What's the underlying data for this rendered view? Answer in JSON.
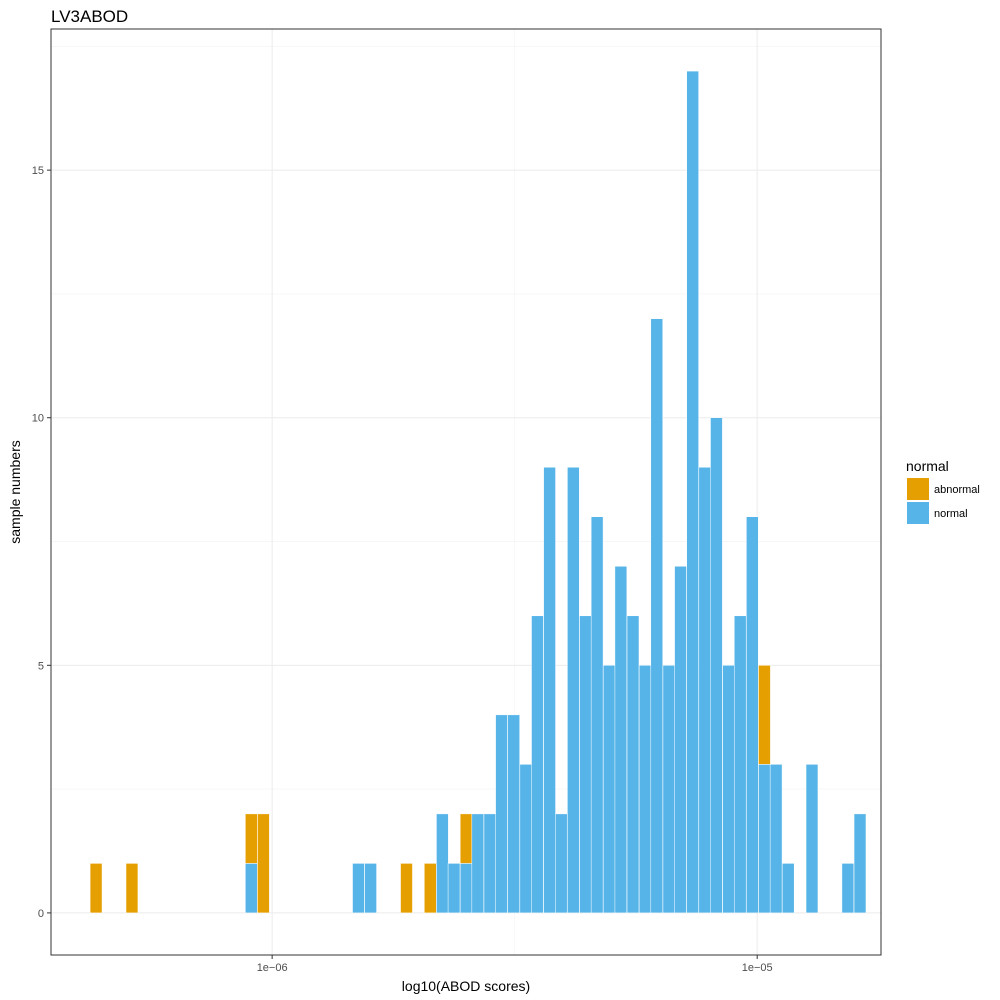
{
  "chart_data": {
    "type": "bar",
    "title": "LV3ABOD",
    "xlabel": "log10(ABOD scores)",
    "ylabel": "sample numbers",
    "x_scale": "log10",
    "x_domain": [
      3.5e-07,
      1.8e-05
    ],
    "y_range": [
      -0.85,
      17.85
    ],
    "x_ticks": [
      {
        "value": 1e-06,
        "label": "1e−06"
      },
      {
        "value": 1e-05,
        "label": "1e−05"
      }
    ],
    "y_ticks": [
      0,
      5,
      10,
      15
    ],
    "grid": true,
    "stacked": true,
    "legend": {
      "title": "normal",
      "position": "right",
      "entries": [
        {
          "name": "abnormal",
          "color": "#E69F00"
        },
        {
          "name": "normal",
          "color": "#56B4E9"
        }
      ]
    },
    "bin_log10_width": 0.0246,
    "bin_centers_log10": [
      -6.363,
      -6.289,
      -6.043,
      -6.018,
      -5.822,
      -5.797,
      -5.723,
      -5.674,
      -5.649,
      -5.625,
      -5.6,
      -5.576,
      -5.551,
      -5.527,
      -5.502,
      -5.477,
      -5.453,
      -5.428,
      -5.404,
      -5.379,
      -5.354,
      -5.33,
      -5.305,
      -5.281,
      -5.256,
      -5.231,
      -5.207,
      -5.182,
      -5.158,
      -5.133,
      -5.108,
      -5.084,
      -5.059,
      -5.035,
      -5.01,
      -4.985,
      -4.961,
      -4.936,
      -4.887,
      -4.837,
      -4.813,
      -4.788
    ],
    "series": [
      {
        "name": "normal",
        "color": "#56B4E9",
        "values": [
          0,
          0,
          1,
          0,
          1,
          1,
          0,
          0,
          2,
          1,
          1,
          2,
          2,
          4,
          4,
          3,
          6,
          9,
          2,
          9,
          6,
          8,
          5,
          7,
          6,
          5,
          12,
          5,
          7,
          17,
          9,
          10,
          5,
          6,
          8,
          3,
          3,
          1,
          3,
          0,
          1,
          2
        ]
      },
      {
        "name": "abnormal",
        "color": "#E69F00",
        "values": [
          1,
          1,
          1,
          2,
          0,
          0,
          1,
          1,
          0,
          0,
          1,
          0,
          0,
          0,
          0,
          0,
          0,
          0,
          0,
          0,
          0,
          0,
          0,
          0,
          0,
          0,
          0,
          0,
          0,
          0,
          0,
          0,
          0,
          0,
          0,
          2,
          0,
          0,
          0,
          0,
          0,
          0
        ]
      }
    ]
  },
  "colors": {
    "panel_border": "#333333",
    "grid_major": "#ebebeb",
    "grid_minor": "#f2f2f2",
    "bar_outline": "#ffffff"
  }
}
